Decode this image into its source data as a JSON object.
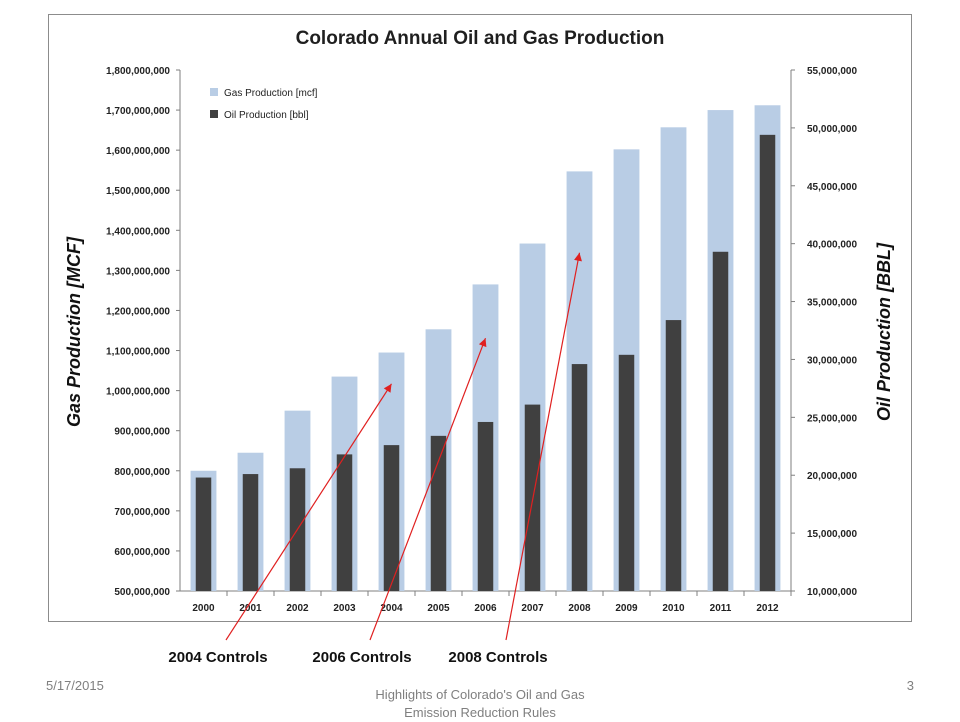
{
  "chart_data": {
    "type": "bar",
    "title": "Colorado Annual Oil and Gas Production",
    "categories": [
      "2000",
      "2001",
      "2002",
      "2003",
      "2004",
      "2005",
      "2006",
      "2007",
      "2008",
      "2009",
      "2010",
      "2011",
      "2012"
    ],
    "series": [
      {
        "name": "Gas Production [mcf]",
        "axis": "left",
        "color": "#b9cde5",
        "values": [
          800000000,
          845000000,
          950000000,
          1035000000,
          1095000000,
          1153000000,
          1265000000,
          1367000000,
          1547000000,
          1602000000,
          1657000000,
          1700000000,
          1712000000
        ]
      },
      {
        "name": "Oil Production [bbl]",
        "axis": "right",
        "color": "#404040",
        "values": [
          19800000,
          20100000,
          20600000,
          21800000,
          22600000,
          23400000,
          24600000,
          26100000,
          29600000,
          30400000,
          33400000,
          39300000,
          49400000
        ]
      }
    ],
    "ylabel": "Gas Production [MCF]",
    "y2label": "Oil Production [BBL]",
    "ylim": [
      500000000,
      1800000000
    ],
    "y2lim": [
      10000000,
      55000000
    ],
    "yticks": [
      "500,000,000",
      "600,000,000",
      "700,000,000",
      "800,000,000",
      "900,000,000",
      "1,000,000,000",
      "1,100,000,000",
      "1,200,000,000",
      "1,300,000,000",
      "1,400,000,000",
      "1,500,000,000",
      "1,600,000,000",
      "1,700,000,000",
      "1,800,000,000"
    ],
    "y2ticks": [
      "10,000,000",
      "15,000,000",
      "20,000,000",
      "25,000,000",
      "30,000,000",
      "35,000,000",
      "40,000,000",
      "45,000,000",
      "50,000,000",
      "55,000,000"
    ],
    "legend_position": "top-left",
    "grid": false,
    "annotations": [
      {
        "text": "2004 Controls",
        "target_year": "2004"
      },
      {
        "text": "2006 Controls",
        "target_year": "2006"
      },
      {
        "text": "2008 Controls",
        "target_year": "2008"
      }
    ],
    "annotation_color": "#e02020"
  },
  "footer": {
    "date": "5/17/2015",
    "title_line1": "Highlights of Colorado's Oil and Gas",
    "title_line2": "Emission Reduction Rules",
    "page": "3"
  }
}
